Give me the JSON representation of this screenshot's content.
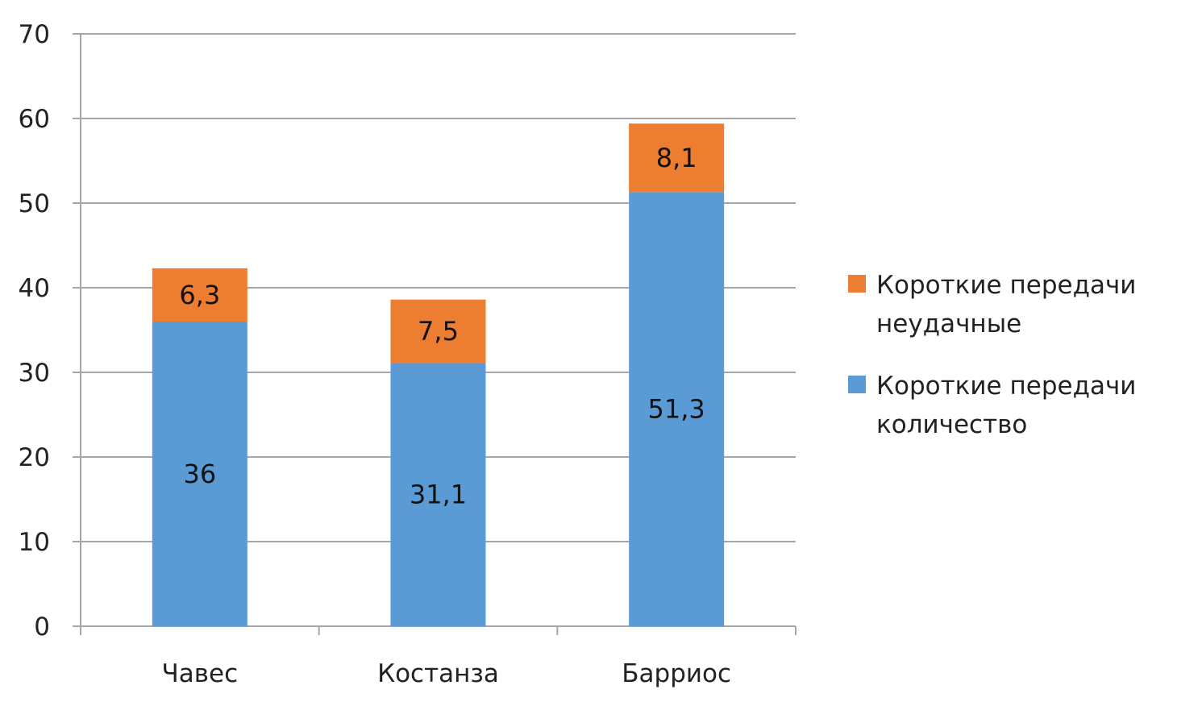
{
  "chart_data": {
    "type": "bar",
    "stacked": true,
    "categories": [
      "Чавес",
      "Костанза",
      "Барриос"
    ],
    "series": [
      {
        "name_lines": [
          "Короткие передачи",
          "количество"
        ],
        "values": [
          36,
          31.1,
          51.3
        ],
        "value_labels": [
          "36",
          "31,1",
          "51,3"
        ],
        "color": "#5b9bd5"
      },
      {
        "name_lines": [
          "Короткие передачи",
          "неудачные"
        ],
        "values": [
          6.3,
          7.5,
          8.1
        ],
        "value_labels": [
          "6,3",
          "7,5",
          "8,1"
        ],
        "color": "#ed7d31"
      }
    ],
    "ylim": [
      0,
      70
    ],
    "yticks": [
      0,
      10,
      20,
      30,
      40,
      50,
      60,
      70
    ],
    "ytick_labels": [
      "0",
      "10",
      "20",
      "30",
      "40",
      "50",
      "60",
      "70"
    ],
    "grid": true,
    "legend_position": "right"
  }
}
